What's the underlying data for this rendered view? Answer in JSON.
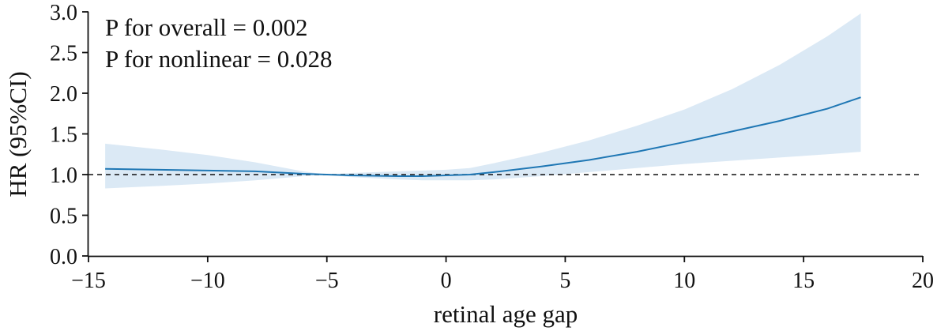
{
  "chart_data": {
    "type": "line",
    "title": "",
    "xlabel": "retinal age gap",
    "ylabel": "HR (95%CI)",
    "xlim": [
      -15,
      20
    ],
    "ylim": [
      0.0,
      3.0
    ],
    "x_ticks": [
      -15,
      -10,
      -5,
      0,
      5,
      10,
      15,
      20
    ],
    "x_tick_labels": [
      "−15",
      "−10",
      "−5",
      "0",
      "5",
      "10",
      "15",
      "20"
    ],
    "y_ticks": [
      0.0,
      0.5,
      1.0,
      1.5,
      2.0,
      2.5,
      3.0
    ],
    "y_tick_labels": [
      "0.0",
      "0.5",
      "1.0",
      "1.5",
      "2.0",
      "2.5",
      "3.0"
    ],
    "grid": false,
    "annotations": [
      "P for overall = 0.002",
      "P for nonlinear = 0.028"
    ],
    "reference_line": {
      "y": 1.0,
      "style": "dashed"
    },
    "colors": {
      "line": "#1f77b4",
      "ci_fill": "#dbe9f5",
      "axis": "#111111",
      "reference": "#111111"
    },
    "series": [
      {
        "type": "line_with_ci",
        "x": [
          -14.3,
          -12,
          -10,
          -8,
          -6,
          -5,
          -4,
          -2,
          -1,
          0,
          1,
          2,
          4,
          6,
          8,
          10,
          12,
          14,
          16,
          17.4
        ],
        "y": [
          1.07,
          1.06,
          1.05,
          1.04,
          1.01,
          1.0,
          0.99,
          0.98,
          0.98,
          0.99,
          1.0,
          1.03,
          1.1,
          1.18,
          1.28,
          1.4,
          1.53,
          1.66,
          1.81,
          1.95
        ],
        "lower": [
          0.83,
          0.86,
          0.89,
          0.93,
          0.98,
          1.0,
          0.97,
          0.94,
          0.93,
          0.93,
          0.93,
          0.94,
          0.98,
          1.03,
          1.08,
          1.13,
          1.17,
          1.21,
          1.25,
          1.28
        ],
        "upper": [
          1.38,
          1.31,
          1.24,
          1.15,
          1.04,
          1.0,
          1.02,
          1.04,
          1.05,
          1.06,
          1.08,
          1.14,
          1.27,
          1.42,
          1.6,
          1.8,
          2.05,
          2.35,
          2.7,
          2.98
        ]
      }
    ]
  }
}
